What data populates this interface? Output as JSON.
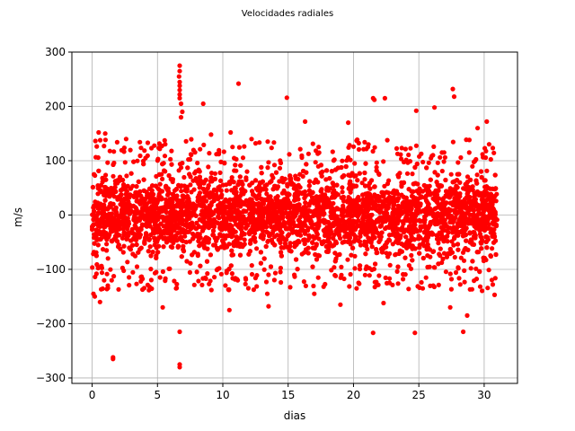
{
  "chart_data": {
    "type": "scatter",
    "title": "Velocidades radiales",
    "xlabel": "dias",
    "ylabel": "m/s",
    "xlim": [
      -1.55,
      32.55
    ],
    "ylim": [
      -310,
      300
    ],
    "x_ticks": [
      0,
      5,
      10,
      15,
      20,
      25,
      30
    ],
    "y_ticks": [
      -300,
      -200,
      -100,
      0,
      100,
      200,
      300
    ],
    "x_tick_labels": [
      "0",
      "5",
      "10",
      "15",
      "20",
      "25",
      "30"
    ],
    "y_tick_labels": [
      "−300",
      "−200",
      "−100",
      "0",
      "100",
      "200",
      "300"
    ],
    "grid": true,
    "marker_color": "#ff0000",
    "x_range": [
      0,
      31
    ],
    "dense_band": [
      -100,
      100
    ],
    "outliers": [
      {
        "x": 6.7,
        "y": 275
      },
      {
        "x": 6.7,
        "y": 265
      },
      {
        "x": 6.65,
        "y": 255
      },
      {
        "x": 6.7,
        "y": 245
      },
      {
        "x": 6.7,
        "y": 238
      },
      {
        "x": 6.7,
        "y": 230
      },
      {
        "x": 6.7,
        "y": 222
      },
      {
        "x": 6.7,
        "y": 215
      },
      {
        "x": 6.8,
        "y": 205
      },
      {
        "x": 6.9,
        "y": 190
      },
      {
        "x": 6.8,
        "y": 180
      },
      {
        "x": 6.7,
        "y": -215
      },
      {
        "x": 6.7,
        "y": -275
      },
      {
        "x": 6.7,
        "y": -280
      },
      {
        "x": 1.6,
        "y": -262
      },
      {
        "x": 1.6,
        "y": -265
      },
      {
        "x": 11.2,
        "y": 242
      },
      {
        "x": 14.9,
        "y": 216
      },
      {
        "x": 8.5,
        "y": 205
      },
      {
        "x": 21.5,
        "y": 215
      },
      {
        "x": 21.6,
        "y": 212
      },
      {
        "x": 22.4,
        "y": 215
      },
      {
        "x": 26.2,
        "y": 198
      },
      {
        "x": 27.6,
        "y": 232
      },
      {
        "x": 27.7,
        "y": 218
      },
      {
        "x": 24.8,
        "y": 192
      },
      {
        "x": 19.6,
        "y": 170
      },
      {
        "x": 16.3,
        "y": 172
      },
      {
        "x": 0.1,
        "y": -145
      },
      {
        "x": 0.2,
        "y": -150
      },
      {
        "x": 0.6,
        "y": -160
      },
      {
        "x": 1.2,
        "y": -130
      },
      {
        "x": 5.4,
        "y": -170
      },
      {
        "x": 5.2,
        "y": -115
      },
      {
        "x": 10.5,
        "y": -175
      },
      {
        "x": 13.5,
        "y": -168
      },
      {
        "x": 13.4,
        "y": -145
      },
      {
        "x": 17.0,
        "y": -145
      },
      {
        "x": 19.0,
        "y": -165
      },
      {
        "x": 21.5,
        "y": -217
      },
      {
        "x": 22.3,
        "y": -162
      },
      {
        "x": 24.7,
        "y": -217
      },
      {
        "x": 26.1,
        "y": -130
      },
      {
        "x": 27.4,
        "y": -170
      },
      {
        "x": 28.4,
        "y": -215
      },
      {
        "x": 28.7,
        "y": -185
      },
      {
        "x": 30.8,
        "y": -147
      },
      {
        "x": 30.2,
        "y": 172
      },
      {
        "x": 29.5,
        "y": 160
      },
      {
        "x": 0.5,
        "y": 152
      },
      {
        "x": 1.0,
        "y": 150
      },
      {
        "x": 2.6,
        "y": 140
      },
      {
        "x": 9.1,
        "y": 148
      },
      {
        "x": 10.6,
        "y": 152
      },
      {
        "x": 12.2,
        "y": 140
      }
    ]
  }
}
